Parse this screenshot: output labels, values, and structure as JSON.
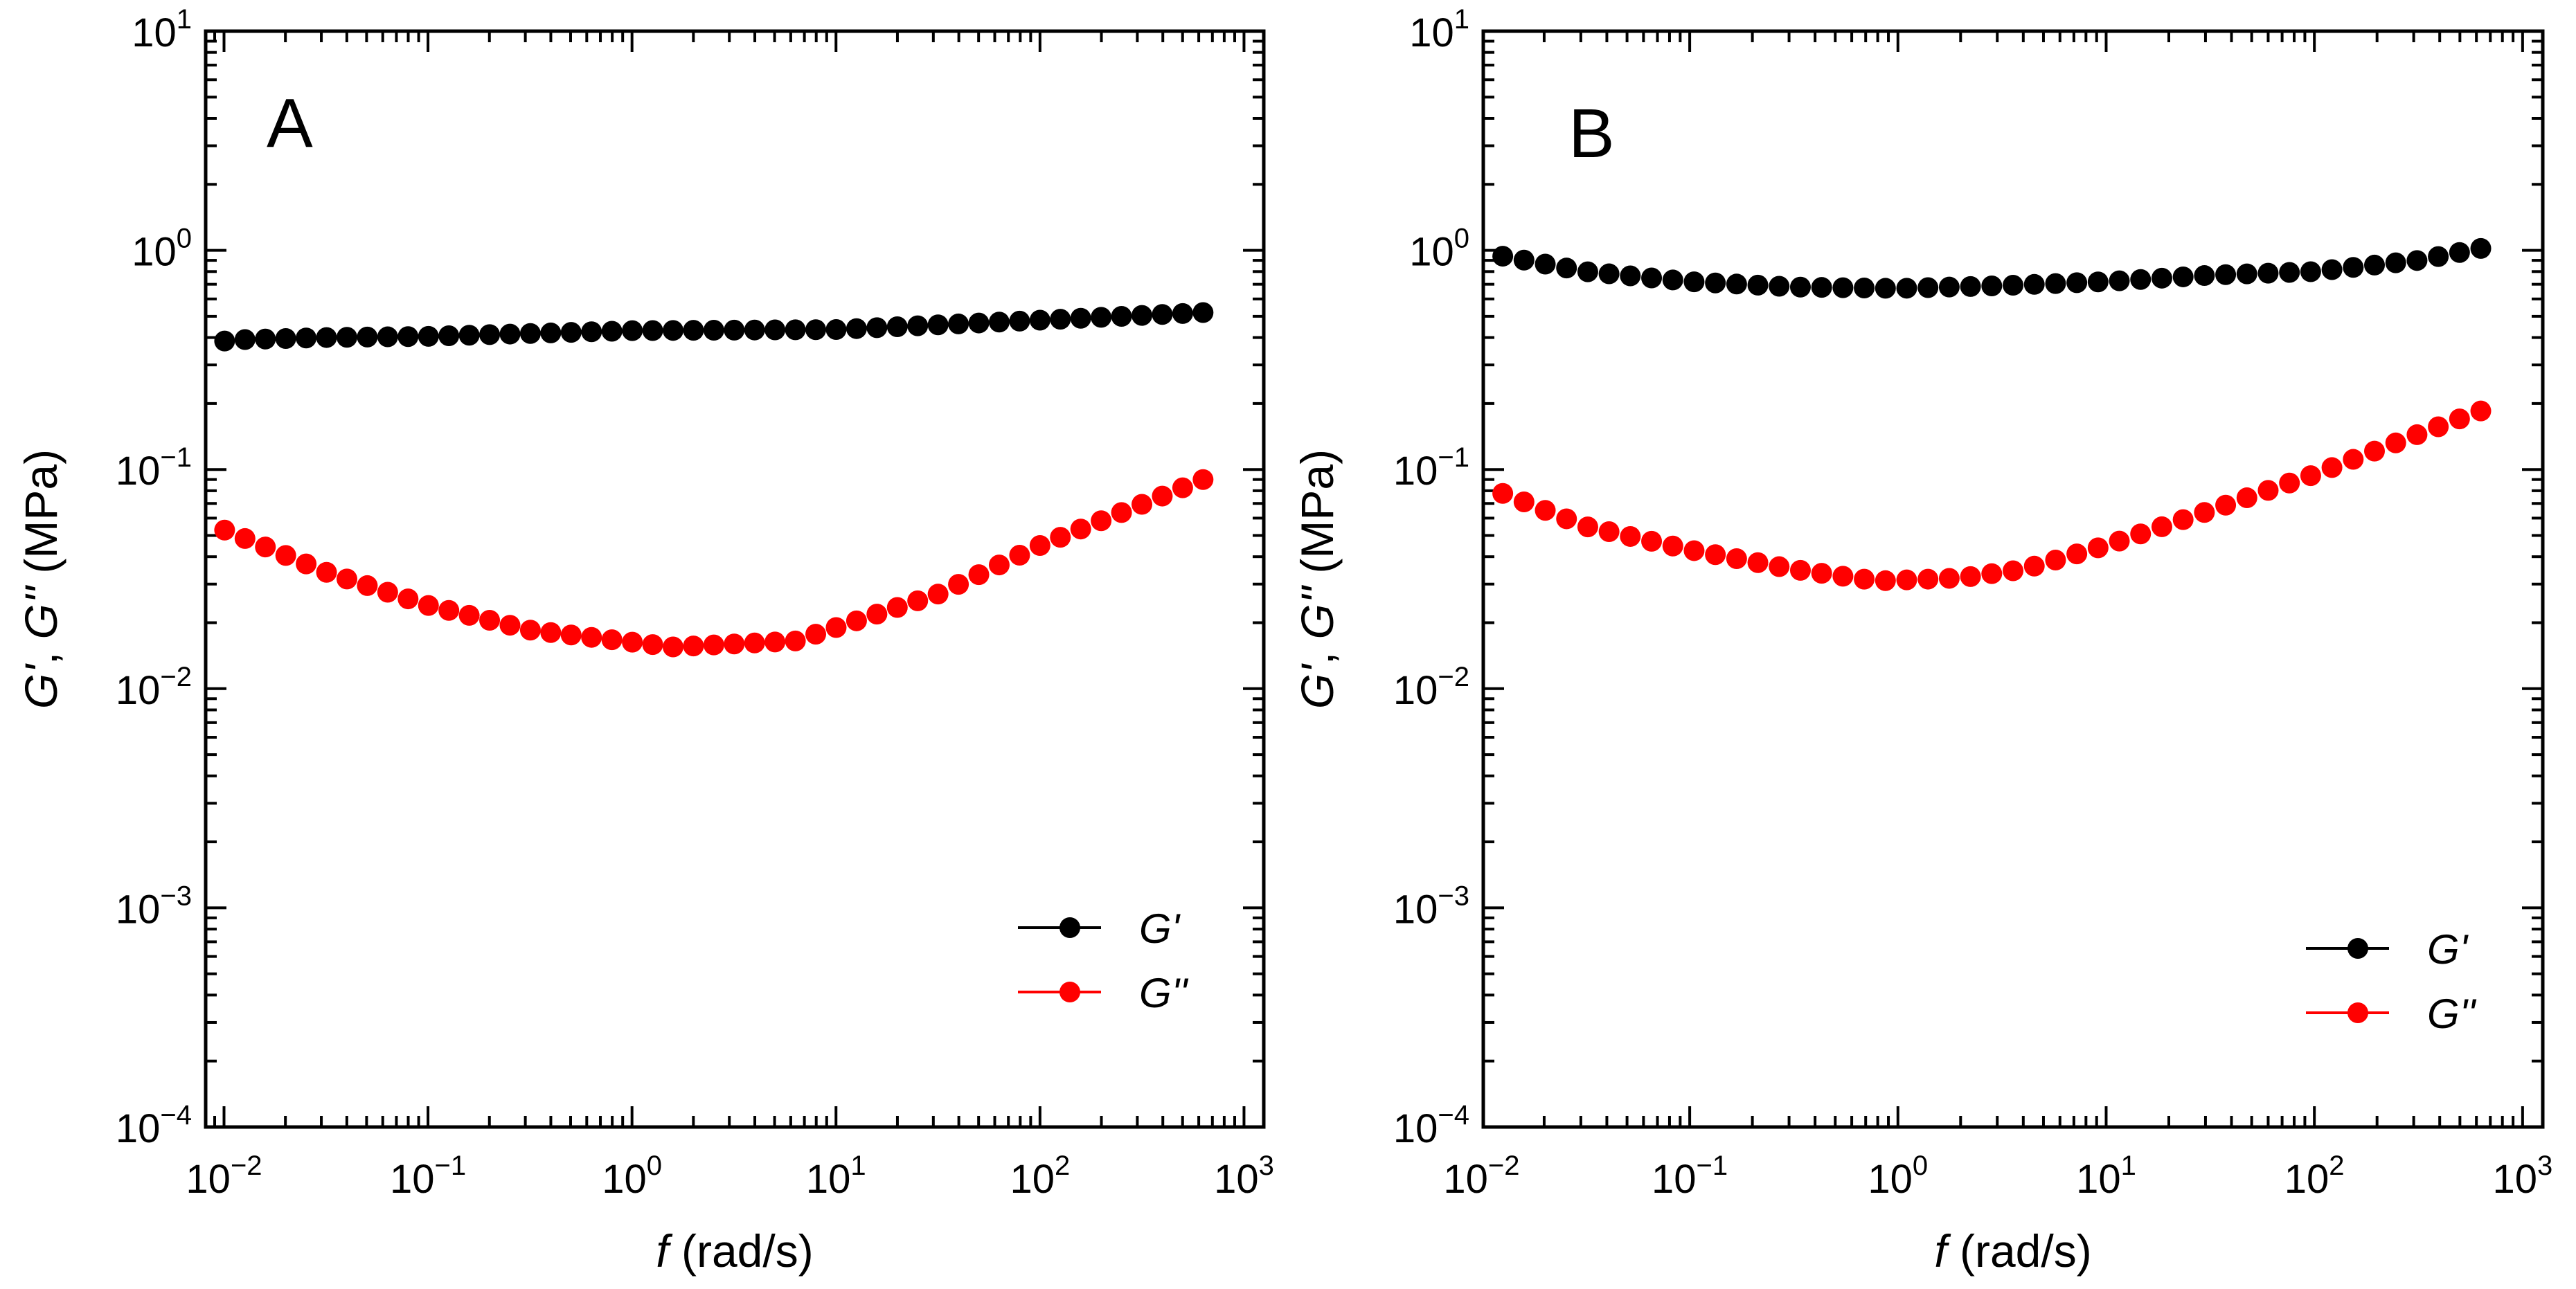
{
  "chart_data": [
    {
      "type": "scatter",
      "panel_label": "A",
      "title": "",
      "xlabel": {
        "var": "f",
        "unit": "(rad/s)"
      },
      "ylabel": {
        "a": "G'",
        "sep": ", ",
        "b": "G''",
        "unit": "(MPa)"
      },
      "xscale": "log",
      "yscale": "log",
      "xlim": [
        0.00813,
        1250
      ],
      "ylim": [
        0.0001,
        10
      ],
      "x_tick_labels": [
        {
          "value": 0.01,
          "base": "10",
          "exp": "−2"
        },
        {
          "value": 0.1,
          "base": "10",
          "exp": "−1"
        },
        {
          "value": 1,
          "base": "10",
          "exp": "0"
        },
        {
          "value": 10,
          "base": "10",
          "exp": "1"
        },
        {
          "value": 100,
          "base": "10",
          "exp": "2"
        },
        {
          "value": 1000,
          "base": "10",
          "exp": "3"
        }
      ],
      "y_tick_labels": [
        {
          "value": 0.0001,
          "base": "10",
          "exp": "−4"
        },
        {
          "value": 0.001,
          "base": "10",
          "exp": "−3"
        },
        {
          "value": 0.01,
          "base": "10",
          "exp": "−2"
        },
        {
          "value": 0.1,
          "base": "10",
          "exp": "−1"
        },
        {
          "value": 1,
          "base": "10",
          "exp": "0"
        },
        {
          "value": 10,
          "base": "10",
          "exp": "1"
        }
      ],
      "legend": {
        "position": "lower-right"
      },
      "series": [
        {
          "name": "G'",
          "color": "#000000",
          "x_range": [
            0.008,
            630
          ],
          "points": 50,
          "profile": [
            [
              -2.1,
              0.36
            ],
            [
              -1.98,
              0.39
            ],
            [
              -1.5,
              0.4
            ],
            [
              -1.0,
              0.405
            ],
            [
              0.0,
              0.43
            ],
            [
              1.0,
              0.435
            ],
            [
              2.0,
              0.48
            ],
            [
              2.8,
              0.52
            ]
          ]
        },
        {
          "name": "G''",
          "color": "#ff0000",
          "x_range": [
            0.008,
            630
          ],
          "points": 50,
          "profile": [
            [
              -2.1,
              0.058
            ],
            [
              -1.5,
              0.034
            ],
            [
              -1.0,
              0.024
            ],
            [
              -0.5,
              0.0185
            ],
            [
              0.2,
              0.0155
            ],
            [
              0.8,
              0.0165
            ],
            [
              1.0,
              0.019
            ],
            [
              1.5,
              0.027
            ],
            [
              2.0,
              0.045
            ],
            [
              2.8,
              0.09
            ]
          ]
        }
      ]
    },
    {
      "type": "scatter",
      "panel_label": "B",
      "title": "",
      "xlabel": {
        "var": "f",
        "unit": "(rad/s)"
      },
      "ylabel": {
        "a": "G'",
        "sep": ", ",
        "b": "G''",
        "unit": "(MPa)"
      },
      "xscale": "log",
      "yscale": "log",
      "xlim": [
        0.0102,
        1250
      ],
      "ylim": [
        0.0001,
        10
      ],
      "x_tick_labels": [
        {
          "value": 0.01,
          "base": "10",
          "exp": "−2"
        },
        {
          "value": 0.1,
          "base": "10",
          "exp": "−1"
        },
        {
          "value": 1,
          "base": "10",
          "exp": "0"
        },
        {
          "value": 10,
          "base": "10",
          "exp": "1"
        },
        {
          "value": 100,
          "base": "10",
          "exp": "2"
        },
        {
          "value": 1000,
          "base": "10",
          "exp": "3"
        }
      ],
      "y_tick_labels": [
        {
          "value": 0.0001,
          "base": "10",
          "exp": "−4"
        },
        {
          "value": 0.001,
          "base": "10",
          "exp": "−3"
        },
        {
          "value": 0.01,
          "base": "10",
          "exp": "−2"
        },
        {
          "value": 0.1,
          "base": "10",
          "exp": "−1"
        },
        {
          "value": 1,
          "base": "10",
          "exp": "0"
        },
        {
          "value": 10,
          "base": "10",
          "exp": "1"
        }
      ],
      "legend": {
        "position": "lower-right"
      },
      "series": [
        {
          "name": "G'",
          "color": "#000000",
          "x_range": [
            0.01,
            630
          ],
          "points": 48,
          "profile": [
            [
              -2.0,
              0.98
            ],
            [
              -1.5,
              0.8
            ],
            [
              -1.0,
              0.72
            ],
            [
              -0.5,
              0.68
            ],
            [
              0.0,
              0.67
            ],
            [
              0.5,
              0.69
            ],
            [
              1.0,
              0.72
            ],
            [
              1.5,
              0.77
            ],
            [
              2.0,
              0.8
            ],
            [
              2.5,
              0.9
            ],
            [
              2.8,
              1.02
            ]
          ]
        },
        {
          "name": "G''",
          "color": "#ff0000",
          "x_range": [
            0.01,
            630
          ],
          "points": 48,
          "profile": [
            [
              -2.0,
              0.085
            ],
            [
              -1.5,
              0.055
            ],
            [
              -1.0,
              0.043
            ],
            [
              -0.5,
              0.035
            ],
            [
              -0.1,
              0.031
            ],
            [
              0.3,
              0.032
            ],
            [
              0.6,
              0.035
            ],
            [
              1.0,
              0.045
            ],
            [
              1.5,
              0.065
            ],
            [
              2.0,
              0.095
            ],
            [
              2.5,
              0.145
            ],
            [
              2.8,
              0.185
            ]
          ]
        }
      ]
    }
  ]
}
